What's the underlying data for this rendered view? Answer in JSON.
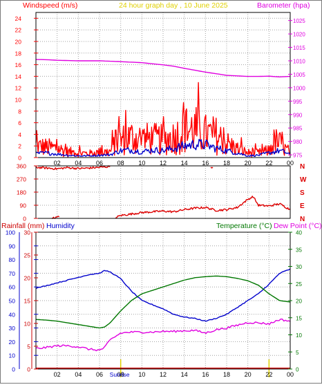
{
  "header": {
    "left_label": "Windspeed (m/s)",
    "title": "24 hour graph day , 10 June 2025",
    "right_label": "Barometer (hpa)"
  },
  "colors": {
    "wind_speed": "#ff0000",
    "wind_avg": "#0000cc",
    "barometer": "#e000e0",
    "wind_dir": "#dd0000",
    "humidity": "#0000cc",
    "temperature": "#007700",
    "dewpoint": "#e000e0",
    "rain": "#cc0000",
    "title": "#e0d000",
    "sun": "#e0d000",
    "grid": "#a0a0a0"
  },
  "panel3_labels": {
    "rainfall": "Rainfall (mm)",
    "humidity": "Humidity",
    "temperature": "Temperature (°C)",
    "dewpoint": "Dew Point (°C)",
    "sunrise": "Sunrise"
  },
  "chart_data": [
    {
      "type": "line",
      "title": "24 hour graph day , 10 June 2025",
      "x_ticks": [
        "02",
        "04",
        "06",
        "08",
        "10",
        "12",
        "14",
        "16",
        "18",
        "20",
        "22",
        "00"
      ],
      "xlim": [
        0,
        24
      ],
      "y_left": {
        "label": "Windspeed (m/s)",
        "ticks": [
          0,
          2,
          4,
          6,
          8,
          10,
          12,
          14,
          16,
          18,
          20,
          22,
          24
        ],
        "lim": [
          0,
          25
        ]
      },
      "y_right": {
        "label": "Barometer (hpa)",
        "ticks": [
          975,
          980,
          985,
          990,
          995,
          1000,
          1005,
          1010,
          1015,
          1020,
          1025
        ],
        "lim": [
          974,
          1028
        ]
      },
      "series": [
        {
          "key": "gust",
          "axis": "left",
          "style": "noisy",
          "points": [
            [
              0,
              2.0
            ],
            [
              1,
              1.8
            ],
            [
              2,
              1.6
            ],
            [
              3,
              1.0
            ],
            [
              4,
              0.8
            ],
            [
              5,
              0.7
            ],
            [
              6,
              0.9
            ],
            [
              7,
              1.0
            ],
            [
              7.5,
              2.5
            ],
            [
              8,
              3.0
            ],
            [
              9,
              3.5
            ],
            [
              10,
              3.2
            ],
            [
              11,
              3.2
            ],
            [
              12,
              3.0
            ],
            [
              13,
              3.5
            ],
            [
              14,
              4.5
            ],
            [
              15,
              4.8
            ],
            [
              16,
              4.0
            ],
            [
              17,
              3.8
            ],
            [
              18,
              2.5
            ],
            [
              19,
              1.5
            ],
            [
              20,
              0.8
            ],
            [
              21,
              0.8
            ],
            [
              22,
              1.2
            ],
            [
              22.5,
              2.8
            ],
            [
              23,
              2.5
            ],
            [
              23.5,
              1.5
            ],
            [
              24,
              1.0
            ]
          ]
        },
        {
          "key": "avg",
          "axis": "left",
          "style": "noisy",
          "points": [
            [
              0,
              0.7
            ],
            [
              1,
              0.8
            ],
            [
              2,
              0.6
            ],
            [
              3,
              0.4
            ],
            [
              4,
              0.3
            ],
            [
              5,
              0.3
            ],
            [
              6,
              0.4
            ],
            [
              7,
              0.5
            ],
            [
              8,
              1.2
            ],
            [
              9,
              1.3
            ],
            [
              10,
              1.0
            ],
            [
              11,
              1.3
            ],
            [
              12,
              1.2
            ],
            [
              13,
              1.6
            ],
            [
              14,
              2.0
            ],
            [
              15,
              2.3
            ],
            [
              16,
              2.2
            ],
            [
              17,
              1.6
            ],
            [
              18,
              1.2
            ],
            [
              19,
              0.8
            ],
            [
              20,
              0.3
            ],
            [
              21,
              0.4
            ],
            [
              22,
              0.8
            ],
            [
              23,
              1.2
            ],
            [
              24,
              0.6
            ]
          ]
        },
        {
          "key": "pressure",
          "axis": "right",
          "style": "smooth",
          "points": [
            [
              0,
              1010.5
            ],
            [
              1,
              1010.4
            ],
            [
              2,
              1010.2
            ],
            [
              4,
              1010.0
            ],
            [
              6,
              1010.0
            ],
            [
              8,
              1009.7
            ],
            [
              10,
              1009.3
            ],
            [
              12,
              1008.5
            ],
            [
              13,
              1008.0
            ],
            [
              14,
              1007.2
            ],
            [
              15,
              1006.5
            ],
            [
              16,
              1005.8
            ],
            [
              17,
              1005.2
            ],
            [
              18,
              1004.6
            ],
            [
              19,
              1004.4
            ],
            [
              20,
              1004.2
            ],
            [
              21,
              1004.2
            ],
            [
              22,
              1004.3
            ],
            [
              23,
              1004.0
            ],
            [
              24,
              1004.2
            ]
          ]
        }
      ]
    },
    {
      "type": "line",
      "x_ticks": [
        "02",
        "04",
        "06",
        "08",
        "10",
        "12",
        "14",
        "16",
        "18",
        "20",
        "22",
        "00"
      ],
      "xlim": [
        0,
        24
      ],
      "y_left": {
        "ticks": [
          0,
          90,
          180,
          270,
          360
        ],
        "lim": [
          0,
          360
        ]
      },
      "y_right": {
        "ticks": [
          "N",
          "E",
          "S",
          "W",
          "N"
        ]
      },
      "series": [
        {
          "key": "direction",
          "axis": "left",
          "style": "direction",
          "segments": [
            [
              [
                0,
                350
              ],
              [
                1,
                345
              ],
              [
                2,
                340
              ],
              [
                3,
                348
              ],
              [
                4,
                342
              ],
              [
                5,
                345
              ],
              [
                6,
                350
              ],
              [
                7,
                355
              ]
            ],
            [
              [
                1.5,
                0
              ],
              [
                2.2,
                10
              ]
            ],
            [
              [
                7.5,
                5
              ],
              [
                8,
                20
              ],
              [
                9,
                30
              ],
              [
                10,
                40
              ],
              [
                11,
                45
              ],
              [
                12,
                50
              ],
              [
                13,
                45
              ],
              [
                14,
                60
              ],
              [
                15,
                70
              ],
              [
                16,
                75
              ],
              [
                17,
                55
              ],
              [
                18,
                60
              ],
              [
                19,
                75
              ],
              [
                20,
                130
              ],
              [
                20.5,
                150
              ],
              [
                21,
                90
              ],
              [
                22,
                85
              ],
              [
                23,
                100
              ],
              [
                24,
                60
              ]
            ],
            [
              [
                16.5,
                355
              ],
              [
                16.7,
                350
              ]
            ]
          ]
        }
      ]
    },
    {
      "type": "line",
      "x_ticks": [
        "02",
        "04",
        "06",
        "08",
        "10",
        "12",
        "14",
        "16",
        "18",
        "20",
        "22",
        "00"
      ],
      "xlim": [
        0,
        24
      ],
      "y_rain": {
        "label": "Rainfall (mm)",
        "ticks": [
          0,
          5,
          10,
          15,
          20,
          25,
          30
        ],
        "lim": [
          0,
          30
        ]
      },
      "y_humidity": {
        "label": "Humidity",
        "ticks": [
          0,
          10,
          20,
          30,
          40,
          50,
          60,
          70,
          80,
          90,
          100
        ],
        "lim": [
          0,
          100
        ]
      },
      "y_right": {
        "label": "Temperature (°C)",
        "ticks": [
          0,
          5,
          10,
          15,
          20,
          25,
          30,
          35,
          40
        ],
        "lim": [
          0,
          40
        ]
      },
      "annotations": [
        {
          "label": "Sunrise",
          "x": 6.0
        },
        {
          "x": 20.0
        }
      ],
      "series": [
        {
          "key": "humidity",
          "axis": "humidity",
          "style": "smooth",
          "points": [
            [
              0,
              59
            ],
            [
              1,
              61
            ],
            [
              2,
              63
            ],
            [
              3,
              65
            ],
            [
              4,
              67
            ],
            [
              5,
              69
            ],
            [
              6,
              70
            ],
            [
              6.5,
              72
            ],
            [
              7,
              71
            ],
            [
              8,
              66
            ],
            [
              9,
              57
            ],
            [
              10,
              50
            ],
            [
              11,
              47
            ],
            [
              12,
              44
            ],
            [
              13,
              40
            ],
            [
              14,
              38
            ],
            [
              15,
              37
            ],
            [
              16,
              35
            ],
            [
              17,
              37
            ],
            [
              18,
              40
            ],
            [
              19,
              45
            ],
            [
              20,
              50
            ],
            [
              21,
              55
            ],
            [
              22,
              62
            ],
            [
              23,
              70
            ],
            [
              24,
              73
            ]
          ]
        },
        {
          "key": "temperature",
          "axis": "right",
          "style": "smooth",
          "points": [
            [
              0,
              14.5
            ],
            [
              1,
              14.3
            ],
            [
              2,
              14.0
            ],
            [
              3,
              13.5
            ],
            [
              4,
              13.0
            ],
            [
              5,
              12.5
            ],
            [
              6,
              12.0
            ],
            [
              6.5,
              12.3
            ],
            [
              7,
              13.5
            ],
            [
              8,
              17.0
            ],
            [
              9,
              20.0
            ],
            [
              10,
              22.0
            ],
            [
              11,
              23.0
            ],
            [
              12,
              24.0
            ],
            [
              13,
              25.0
            ],
            [
              14,
              26.0
            ],
            [
              15,
              26.7
            ],
            [
              16,
              27.0
            ],
            [
              17,
              27.2
            ],
            [
              18,
              27.0
            ],
            [
              19,
              26.5
            ],
            [
              20,
              25.8
            ],
            [
              21,
              24.5
            ],
            [
              22,
              22.0
            ],
            [
              23,
              20.0
            ],
            [
              24,
              19.6
            ]
          ]
        },
        {
          "key": "dewpoint",
          "axis": "right",
          "style": "noisy",
          "points": [
            [
              0,
              6.0
            ],
            [
              1,
              6.3
            ],
            [
              2,
              6.8
            ],
            [
              3,
              6.8
            ],
            [
              4,
              6.5
            ],
            [
              5,
              5.8
            ],
            [
              6,
              5.5
            ],
            [
              6.5,
              6.3
            ],
            [
              7,
              8.5
            ],
            [
              8,
              10.5
            ],
            [
              9,
              10.8
            ],
            [
              10,
              10.8
            ],
            [
              11,
              10.8
            ],
            [
              12,
              11.0
            ],
            [
              13,
              11.0
            ],
            [
              14,
              11.2
            ],
            [
              15,
              11.3
            ],
            [
              16,
              10.5
            ],
            [
              17,
              11.5
            ],
            [
              18,
              12.0
            ],
            [
              19,
              12.8
            ],
            [
              20,
              13.6
            ],
            [
              21,
              13.5
            ],
            [
              22,
              13.2
            ],
            [
              23,
              14.5
            ],
            [
              24,
              14.0
            ]
          ]
        },
        {
          "key": "rain",
          "axis": "rain",
          "style": "smooth",
          "points": [
            [
              0,
              0.2
            ],
            [
              24,
              0.2
            ]
          ]
        }
      ]
    }
  ]
}
